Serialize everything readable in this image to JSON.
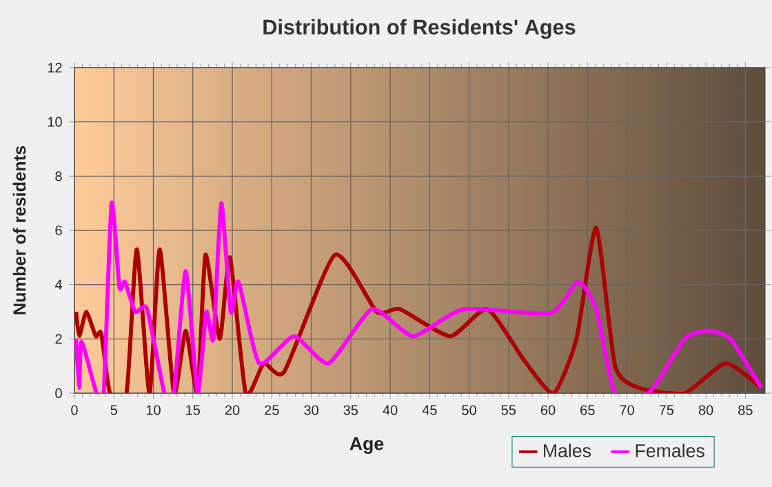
{
  "chart_data": {
    "type": "line",
    "title": "Distribution of Residents' Ages",
    "xlabel": "Age",
    "ylabel": "Number of residents",
    "xlim": [
      0,
      87.5
    ],
    "ylim": [
      0,
      12
    ],
    "xticks": [
      0,
      5,
      10,
      15,
      20,
      25,
      30,
      35,
      40,
      45,
      50,
      55,
      60,
      65,
      70,
      75,
      80,
      85
    ],
    "yticks": [
      0,
      2,
      4,
      6,
      8,
      10,
      12
    ],
    "grid": true,
    "legend": "bottom right",
    "marker": "none",
    "line_style": "solid",
    "series": [
      {
        "name": "Males",
        "color": "#aa0000",
        "x": [
          0.2,
          0.6,
          1.5,
          2.7,
          3.4,
          4.5,
          6.6,
          7.9,
          9.5,
          10.8,
          12.6,
          14.1,
          15.6,
          16.6,
          18.4,
          19.7,
          21.7,
          24,
          26.6,
          33,
          38.3,
          41.2,
          47.6,
          52.3,
          57,
          60.7,
          63.6,
          66.1,
          68.5,
          71.5,
          77.3,
          82.5,
          87
        ],
        "values": [
          3,
          2.1,
          3,
          2.1,
          2.2,
          0,
          0,
          5.3,
          0,
          5.3,
          0,
          2.3,
          0,
          5.1,
          2,
          5,
          0,
          1.1,
          0.8,
          5.1,
          3,
          3.1,
          2.1,
          3.1,
          1.2,
          0,
          2,
          6.1,
          1,
          0.2,
          0,
          1.1,
          0.2
        ]
      },
      {
        "name": "Females",
        "color": "#ff00ff",
        "x": [
          0.2,
          0.6,
          0.9,
          2.8,
          3.7,
          4.7,
          5.7,
          6.4,
          7.7,
          9.2,
          11.4,
          12.6,
          14.1,
          15.6,
          16.7,
          17.6,
          18.6,
          19.8,
          20.8,
          23.4,
          27.8,
          32.2,
          37.7,
          42.9,
          49.3,
          60.3,
          63.8,
          66.1,
          68.5,
          72.9,
          77.3,
          80.2,
          83.1,
          87
        ],
        "values": [
          2,
          0.2,
          1.9,
          0,
          0,
          7,
          3.9,
          4.1,
          3,
          3.1,
          0,
          0,
          4.5,
          0,
          3,
          2,
          7,
          3,
          4.1,
          1.1,
          2.1,
          1.1,
          3.1,
          2.1,
          3.1,
          2.95,
          4.1,
          3.1,
          0,
          0.05,
          2,
          2.3,
          2,
          0.2
        ]
      }
    ]
  }
}
